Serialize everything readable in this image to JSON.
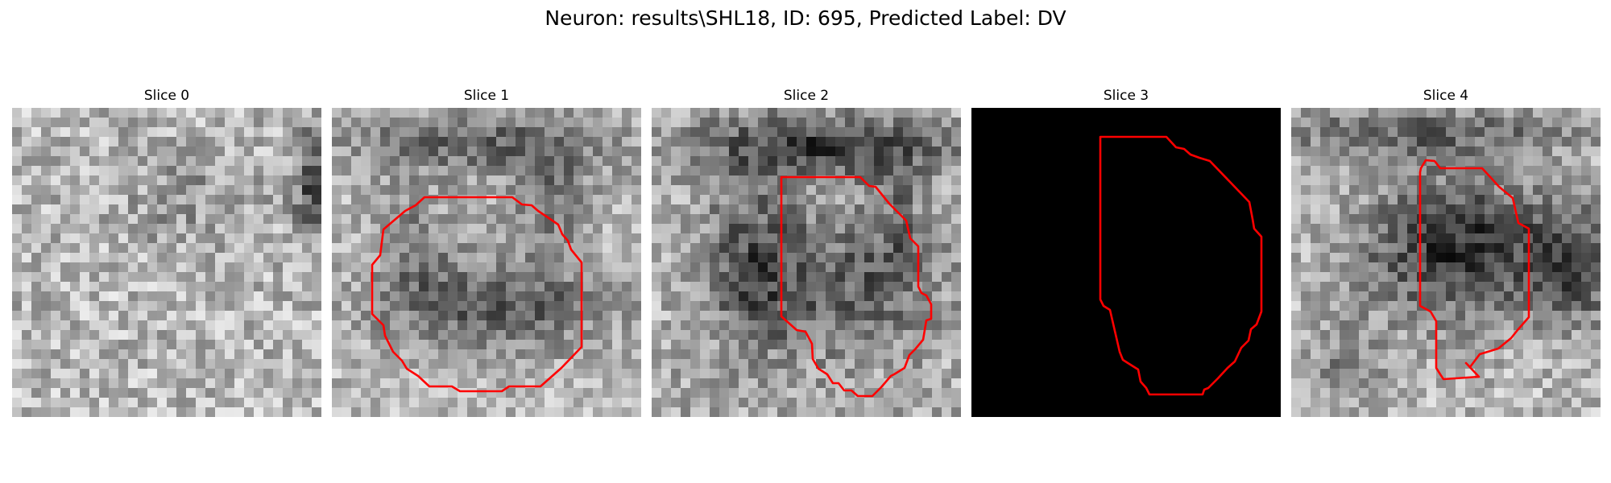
{
  "figure": {
    "title": "Neuron: results\\SHL18, ID: 695, Predicted Label: DV"
  },
  "colors": {
    "contour": "#ff0000",
    "background": "#ffffff"
  },
  "panels": [
    {
      "title": "Slice 0"
    },
    {
      "title": "Slice 1"
    },
    {
      "title": "Slice 2"
    },
    {
      "title": "Slice 3"
    },
    {
      "title": "Slice 4"
    }
  ]
}
